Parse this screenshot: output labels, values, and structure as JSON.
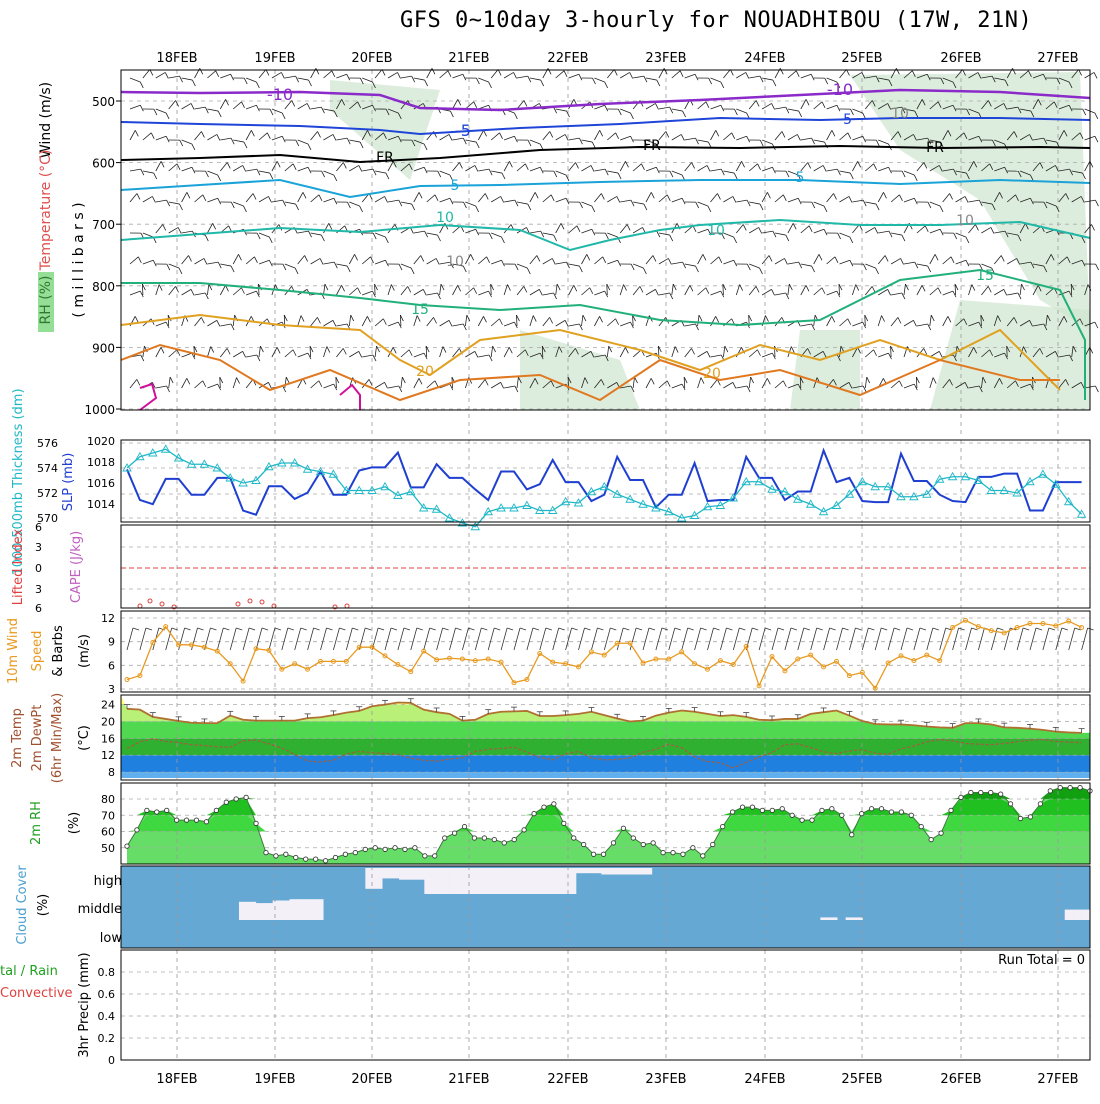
{
  "title": "GFS 0~10day 3-hourly for NOUADHIBOU (17W, 21N)",
  "dates": [
    "18FEB",
    "19FEB",
    "20FEB",
    "21FEB",
    "22FEB",
    "23FEB",
    "24FEB",
    "25FEB",
    "26FEB",
    "27FEB"
  ],
  "colors": {
    "purple": "#8a2bc9",
    "blue": "#1f45d8",
    "black": "#000000",
    "cyan": "#1aa3d8",
    "teal": "#20b8a8",
    "green15": "#22b07a",
    "orange": "#e0a020",
    "darkorange": "#e07820",
    "magenta": "#d0109a",
    "rhfill": "#cfe6cf",
    "slp": "#1f3fd0",
    "thick": "#20b8c8",
    "wind10": "#e89a20",
    "temp": "#b07030",
    "cloud": "#66a8d4",
    "cloudclear": "#f4f0f8"
  },
  "panels": {
    "upper": {
      "ylabel_parts": [
        "Wind (m/s)",
        "Temperature (°C)",
        "RH (%)"
      ],
      "ylabel2": "( m i l l i b a r s )",
      "yticks": [
        500,
        600,
        700,
        800,
        900,
        1000
      ],
      "contour_labels": [
        "-10",
        "-10",
        "-5",
        "-5",
        "FR",
        "FR",
        "FR",
        "5",
        "5",
        "10",
        "10",
        "15",
        "15",
        "20",
        "20",
        "10",
        "10",
        "10"
      ]
    },
    "slp": {
      "ylabel_left": "1000-500mb Thickness (dm)",
      "ylabel_right": "SLP (mb)",
      "left_ticks": [
        570,
        572,
        574,
        576
      ],
      "right_ticks": [
        1014,
        1016,
        1018,
        1020
      ]
    },
    "cape": {
      "ylabel_left": "Lifted Index",
      "ylabel_right": "CAPE (J/kg)",
      "ticks": [
        "6",
        "3",
        "0",
        "3",
        "6"
      ]
    },
    "wind10": {
      "ylabel_a": "10m Wind",
      "ylabel_b": "Speed",
      "ylabel_c": "& Barbs",
      "unit": "(m/s)",
      "ticks": [
        3,
        6,
        9,
        12
      ]
    },
    "temp2m": {
      "ylabel_a": "2m Temp",
      "ylabel_b": "2m DewPt",
      "ylabel_c": "(6hr Min/Max)",
      "unit": "(°C)",
      "ticks": [
        8,
        12,
        16,
        20,
        24
      ]
    },
    "rh2m": {
      "ylabel": "2m RH",
      "unit": "(%)",
      "ticks": [
        50,
        60,
        70,
        80
      ]
    },
    "cloud": {
      "ylabel": "Cloud Cover",
      "unit": "(%)",
      "levels": [
        "high",
        "middle",
        "low"
      ]
    },
    "precip": {
      "ylabel_a": "tal / Rain",
      "ylabel_b": "Convective",
      "ylabel_c": "3hr Precip (mm)",
      "ticks": [
        "0",
        "0.2",
        "0.4",
        "0.6",
        "0.8"
      ],
      "run_total": "Run Total = 0"
    }
  },
  "chart_data": [
    {
      "type": "line",
      "name": "slp",
      "x_unit": "3-hourly steps from 17FEB 12Z",
      "series": [
        {
          "name": "SLP (mb)",
          "values": [
            1017.3,
            1014.4,
            1014.0,
            1016.4,
            1016.4,
            1014.9,
            1014.9,
            1016.5,
            1016.5,
            1013.4,
            1013.0,
            1015.7,
            1015.7,
            1014.5,
            1015.1,
            1017.1,
            1014.9,
            1014.9,
            1017.2,
            1017.5,
            1017.5,
            1018.9,
            1015.6,
            1015.6,
            1017.8,
            1016.5,
            1016.5,
            1015.4,
            1014.4,
            1017.1,
            1017.1,
            1015.4,
            1015.9,
            1018.2,
            1016.1,
            1016.1,
            1014.3,
            1014.9,
            1018.5,
            1016.3,
            1016.3,
            1013.7,
            1014.9,
            1014.9,
            1017.9,
            1014.3,
            1014.4,
            1014.4,
            1018.5,
            1016.5,
            1016.5,
            1014.4,
            1015.2,
            1015.2,
            1019.1,
            1016.1,
            1016.5,
            1014.3,
            1014.2,
            1014.2,
            1018.8,
            1016.2,
            1016.2,
            1014.9,
            1014.3,
            1014.2,
            1016.6,
            1016.6,
            1016.9,
            1016.9,
            1013.4,
            1013.4,
            1016.1,
            1016.1,
            1016.1
          ]
        },
        {
          "name": "Thickness (dm)",
          "values": [
            574.0,
            574.9,
            575.2,
            575.5,
            574.8,
            574.3,
            574.3,
            574.0,
            573.2,
            572.8,
            573.0,
            574.1,
            574.4,
            574.4,
            573.9,
            573.7,
            573.5,
            572.2,
            572.2,
            572.2,
            572.5,
            571.8,
            572.1,
            570.8,
            570.7,
            570.0,
            569.6,
            569.3,
            570.5,
            570.8,
            570.8,
            571.0,
            570.6,
            570.6,
            571.3,
            571.2,
            572.1,
            572.5,
            571.9,
            571.5,
            571.1,
            570.8,
            570.5,
            570.0,
            570.2,
            570.9,
            571.0,
            571.6,
            572.9,
            572.9,
            572.3,
            572.1,
            571.5,
            571.1,
            570.5,
            571.0,
            571.9,
            572.9,
            572.5,
            572.5,
            571.7,
            571.7,
            571.9,
            573.1,
            573.3,
            573.3,
            573.0,
            572.2,
            572.2,
            572.0,
            572.9,
            573.5,
            572.7,
            571.3,
            570.3
          ]
        }
      ],
      "left_range": [
        570,
        576
      ],
      "right_range": [
        1012.5,
        1020
      ]
    },
    {
      "type": "line",
      "name": "wind10",
      "series": [
        {
          "name": "10m Wind Speed (m/s)",
          "values": [
            4.2,
            4.7,
            8.9,
            10.9,
            8.6,
            8.6,
            8.3,
            7.8,
            6.2,
            4.0,
            8.1,
            7.9,
            5.5,
            6.2,
            5.5,
            6.5,
            6.5,
            6.5,
            8.3,
            8.3,
            7.2,
            6.1,
            5.2,
            7.8,
            6.7,
            6.9,
            6.8,
            6.6,
            6.8,
            6.4,
            3.8,
            4.2,
            7.5,
            6.4,
            6.2,
            5.8,
            7.7,
            7.3,
            8.8,
            8.8,
            6.3,
            6.8,
            6.8,
            7.7,
            6.2,
            5.5,
            6.6,
            6.1,
            8.4,
            3.4,
            7.1,
            5.3,
            6.8,
            7.3,
            5.8,
            6.5,
            4.7,
            5.1,
            3.1,
            6.3,
            7.2,
            6.6,
            7.3,
            6.6,
            10.8,
            11.7,
            10.9,
            10.4,
            10.1,
            10.8,
            11.3,
            11.3,
            11.0,
            11.6,
            10.8
          ]
        }
      ],
      "yrange": [
        2.5,
        12.8
      ]
    },
    {
      "type": "area",
      "name": "temp2m",
      "series": [
        {
          "name": "2m Temp (°C)",
          "values": [
            23.0,
            22.8,
            21.1,
            20.6,
            20.1,
            19.7,
            19.6,
            19.6,
            21.4,
            20.4,
            20.2,
            20.2,
            20.2,
            20.2,
            20.8,
            21.0,
            21.5,
            22.1,
            22.5,
            23.6,
            24.0,
            24.5,
            24.4,
            22.8,
            22.2,
            21.8,
            20.2,
            20.4,
            21.8,
            22.3,
            22.4,
            22.5,
            21.3,
            21.3,
            21.5,
            21.8,
            22.3,
            21.5,
            20.7,
            20.0,
            20.2,
            21.4,
            22.1,
            22.6,
            22.3,
            21.8,
            21.3,
            21.5,
            21.1,
            20.4,
            20.3,
            20.6,
            20.6,
            21.8,
            22.2,
            22.6,
            21.4,
            20.1,
            19.4,
            19.3,
            19.3,
            19.1,
            18.8,
            18.6,
            18.5,
            19.6,
            19.6,
            19.3,
            18.6,
            18.5,
            18.3,
            18.0,
            17.6,
            17.4,
            17.3
          ]
        },
        {
          "name": "2m DewPt (°C)",
          "values": [
            13.6,
            15.2,
            15.9,
            15.3,
            15.0,
            14.5,
            14.3,
            14.0,
            13.9,
            15.4,
            15.6,
            14.7,
            13.7,
            12.2,
            10.6,
            10.4,
            10.8,
            12.3,
            12.9,
            12.6,
            12.4,
            12.2,
            11.3,
            10.8,
            10.6,
            11.1,
            11.4,
            12.9,
            13.4,
            13.6,
            13.9,
            12.7,
            11.5,
            10.9,
            12.3,
            12.9,
            11.4,
            10.9,
            11.0,
            11.4,
            12.7,
            13.4,
            14.6,
            13.8,
            11.6,
            10.5,
            10.2,
            9.0,
            10.3,
            11.6,
            12.6,
            14.5,
            14.7,
            13.8,
            12.8,
            12.4,
            13.0,
            13.3,
            12.5,
            12.2,
            13.5,
            14.2,
            15.2,
            15.7,
            15.4,
            14.8,
            14.6,
            14.5,
            14.8,
            15.2,
            15.6,
            15.7,
            15.3,
            15.1,
            15.0
          ]
        }
      ],
      "yrange": [
        6.6,
        25.8
      ]
    },
    {
      "type": "area",
      "name": "rh2m",
      "series": [
        {
          "name": "2m RH (%)",
          "values": [
            51,
            61,
            73,
            72,
            73,
            67,
            67,
            67,
            66,
            73,
            78,
            80,
            81,
            65,
            47,
            45,
            46,
            44,
            43,
            43,
            42,
            44,
            46,
            47,
            49,
            50,
            49,
            50,
            49,
            50,
            45,
            45,
            56,
            59,
            63,
            56,
            56,
            55,
            53,
            55,
            61,
            71,
            75,
            77,
            65,
            56,
            52,
            46,
            46,
            53,
            62,
            56,
            52,
            53,
            47,
            47,
            46,
            50,
            45,
            52,
            63,
            72,
            75,
            75,
            73,
            73,
            74,
            70,
            67,
            67,
            73,
            74,
            70,
            58,
            71,
            74,
            74,
            72,
            72,
            70,
            63,
            55,
            59,
            73,
            81,
            84,
            84,
            84,
            83,
            77,
            68,
            69,
            77,
            85,
            87,
            87,
            87,
            85
          ]
        }
      ],
      "yrange": [
        40,
        88
      ]
    },
    {
      "type": "bar",
      "name": "cloud",
      "series": [
        {
          "name": "High cloud (%)",
          "values": [
            100,
            100,
            100,
            100,
            100,
            100,
            100,
            100,
            100,
            100,
            100,
            100,
            100,
            100,
            100,
            100,
            100,
            100,
            100,
            100,
            100,
            100,
            100,
            100,
            100,
            100,
            100,
            100,
            100,
            20,
            20,
            60,
            60,
            55,
            55,
            55,
            0,
            0,
            0,
            0,
            0,
            0,
            0,
            0,
            0,
            0,
            0,
            0,
            0,
            0,
            0,
            0,
            0,
            0,
            80,
            80,
            80,
            75,
            75,
            75,
            75,
            75,
            75,
            100,
            100,
            100,
            100,
            100,
            100,
            100,
            100,
            100,
            100,
            100,
            100,
            100,
            100,
            100,
            100,
            100,
            100,
            100,
            100,
            100,
            100,
            100,
            100,
            100,
            100,
            100,
            100,
            100,
            100,
            100,
            100,
            100,
            100,
            100,
            100,
            100,
            100,
            100,
            100,
            100,
            100,
            100,
            100,
            100,
            100,
            100,
            100,
            100,
            100,
            100,
            100
          ]
        },
        {
          "name": "Middle cloud (%)",
          "values": [
            100,
            100,
            100,
            100,
            100,
            100,
            100,
            100,
            100,
            100,
            100,
            100,
            100,
            100,
            30,
            30,
            35,
            35,
            25,
            25,
            20,
            20,
            20,
            20,
            100,
            100,
            100,
            100,
            100,
            100,
            100,
            100,
            100,
            100,
            100,
            100,
            100,
            100,
            100,
            100,
            100,
            100,
            100,
            100,
            100,
            100,
            100,
            100,
            100,
            100,
            100,
            100,
            100,
            100,
            100,
            100,
            100,
            100,
            100,
            100,
            100,
            100,
            100,
            100,
            100,
            100,
            100,
            100,
            100,
            100,
            100,
            100,
            100,
            100,
            100,
            100,
            100,
            100,
            100,
            100,
            100,
            100,
            100,
            90,
            90,
            100,
            90,
            90,
            100,
            100,
            100,
            100,
            100,
            100,
            100,
            100,
            100,
            100,
            100,
            100,
            100,
            100,
            100,
            100,
            100,
            100,
            100,
            100,
            100,
            100,
            100,
            100,
            60,
            60,
            60
          ]
        }
      ]
    }
  ]
}
